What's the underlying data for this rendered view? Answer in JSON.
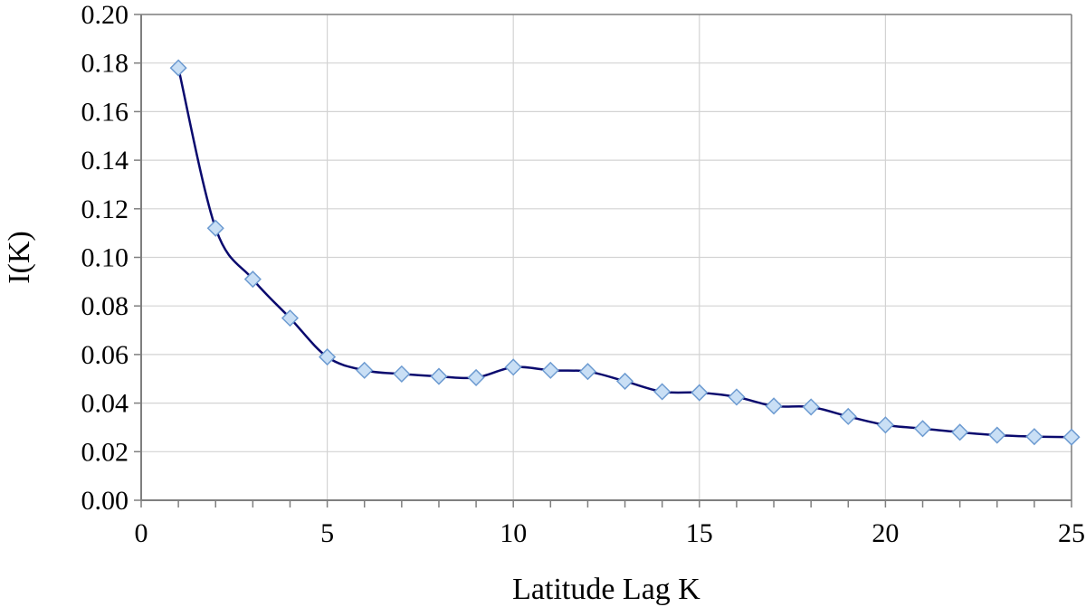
{
  "chart_data": {
    "type": "line",
    "title": "",
    "xlabel": "Latitude Lag K",
    "ylabel": "I(K)",
    "xlim": [
      0,
      25
    ],
    "ylim": [
      0,
      0.2
    ],
    "x_ticks": [
      0,
      5,
      10,
      15,
      20,
      25
    ],
    "x_tick_labels": [
      "0",
      "5",
      "10",
      "15",
      "20",
      "25"
    ],
    "y_ticks": [
      0,
      0.02,
      0.04,
      0.06,
      0.08,
      0.1,
      0.12,
      0.14,
      0.16,
      0.18,
      0.2
    ],
    "y_tick_labels": [
      "0.00",
      "0.02",
      "0.04",
      "0.06",
      "0.08",
      "0.10",
      "0.12",
      "0.14",
      "0.16",
      "0.18",
      "0.20"
    ],
    "grid": true,
    "legend": "none",
    "smooth_line": true,
    "marker": "diamond",
    "colors": {
      "line": "#0a0a6e",
      "marker_fill": "#c9dff5",
      "marker_edge": "#6d9bd1",
      "grid": "#d3d3d3",
      "axis": "#7f7f7f"
    },
    "series": [
      {
        "x": [
          1,
          2,
          3,
          4,
          5,
          6,
          7,
          8,
          9,
          10,
          11,
          12,
          13,
          14,
          15,
          16,
          17,
          18,
          19,
          20,
          21,
          22,
          23,
          24,
          25
        ],
        "values": [
          0.178,
          0.112,
          0.091,
          0.075,
          0.059,
          0.0535,
          0.052,
          0.051,
          0.0505,
          0.0548,
          0.0535,
          0.053,
          0.049,
          0.0447,
          0.0443,
          0.0425,
          0.0388,
          0.0384,
          0.0345,
          0.031,
          0.0295,
          0.028,
          0.0268,
          0.0262,
          0.026
        ]
      }
    ]
  }
}
